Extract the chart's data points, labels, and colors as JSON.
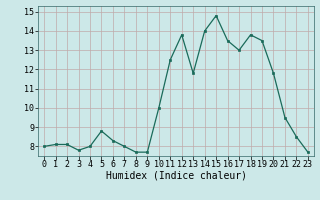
{
  "x": [
    0,
    1,
    2,
    3,
    4,
    5,
    6,
    7,
    8,
    9,
    10,
    11,
    12,
    13,
    14,
    15,
    16,
    17,
    18,
    19,
    20,
    21,
    22,
    23
  ],
  "y": [
    8.0,
    8.1,
    8.1,
    7.8,
    8.0,
    8.8,
    8.3,
    8.0,
    7.7,
    7.7,
    10.0,
    12.5,
    13.8,
    11.8,
    14.0,
    14.8,
    13.5,
    13.0,
    13.8,
    13.5,
    11.8,
    9.5,
    8.5,
    7.7
  ],
  "xlabel": "Humidex (Indice chaleur)",
  "ylim": [
    7.5,
    15.3
  ],
  "xlim": [
    -0.5,
    23.5
  ],
  "yticks": [
    8,
    9,
    10,
    11,
    12,
    13,
    14,
    15
  ],
  "xtick_labels": [
    "0",
    "1",
    "2",
    "3",
    "4",
    "5",
    "6",
    "7",
    "8",
    "9",
    "10",
    "11",
    "12",
    "13",
    "14",
    "15",
    "16",
    "17",
    "18",
    "19",
    "20",
    "21",
    "22",
    "23"
  ],
  "line_color": "#1a6b5a",
  "marker_color": "#1a6b5a",
  "bg_plot": "#cce8e8",
  "bg_fig": "#cce8e8",
  "grid_color": "#c0aaaa",
  "xlabel_fontsize": 7,
  "tick_fontsize": 6,
  "title_fontsize": 7,
  "linewidth": 0.9,
  "markersize": 2.0
}
